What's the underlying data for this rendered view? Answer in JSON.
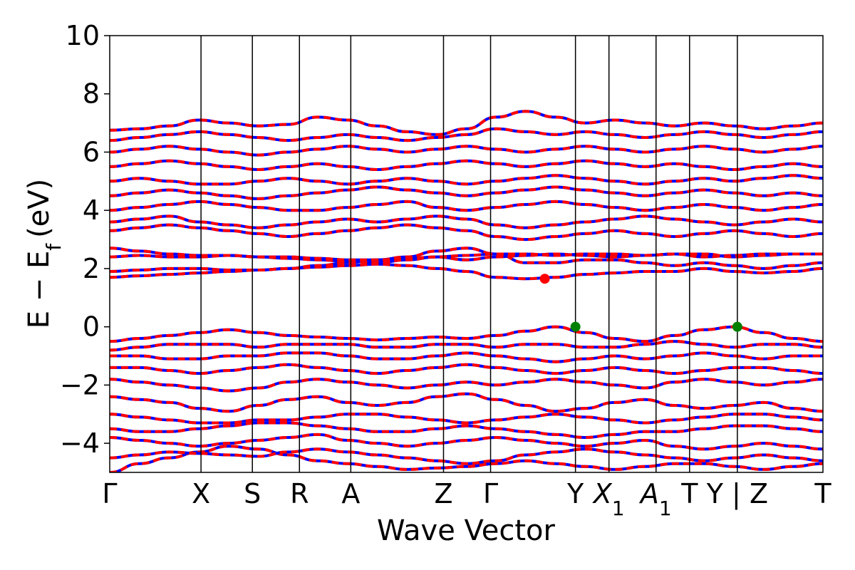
{
  "chart_data": {
    "type": "line",
    "xlabel": "Wave Vector",
    "ylabel": "E − E",
    "ylabel_sub": "f",
    "ylabel_unit": "(eV)",
    "ylim": [
      -5,
      10
    ],
    "xlim": [
      0,
      1
    ],
    "yticks": [
      {
        "value": -4,
        "label": "−4"
      },
      {
        "value": -2,
        "label": "−2"
      },
      {
        "value": 0,
        "label": "0"
      },
      {
        "value": 2,
        "label": "2"
      },
      {
        "value": 4,
        "label": "4"
      },
      {
        "value": 6,
        "label": "6"
      },
      {
        "value": 8,
        "label": "8"
      },
      {
        "value": 10,
        "label": "10"
      }
    ],
    "kpoints": [
      {
        "label": "Γ",
        "sub": "",
        "x": 0.0
      },
      {
        "label": "X",
        "sub": "",
        "x": 0.128
      },
      {
        "label": "S",
        "sub": "",
        "x": 0.2
      },
      {
        "label": "R",
        "sub": "",
        "x": 0.266
      },
      {
        "label": "A",
        "sub": "",
        "x": 0.338
      },
      {
        "label": "Z",
        "sub": "",
        "x": 0.468
      },
      {
        "label": "Γ",
        "sub": "",
        "x": 0.534
      },
      {
        "label": "Y",
        "sub": "",
        "x": 0.653
      },
      {
        "label": "X",
        "sub": "1",
        "x": 0.7
      },
      {
        "label": "A",
        "sub": "1",
        "x": 0.766
      },
      {
        "label": "T",
        "sub": "",
        "x": 0.813
      },
      {
        "label": "Y | Z",
        "sub": "",
        "x": 0.88
      },
      {
        "label": "T",
        "sub": "",
        "x": 1.0
      }
    ],
    "band_colors": {
      "up": "#ff0000",
      "down": "#0000ff"
    },
    "series": [
      {
        "values": [
          -5.0,
          -4.7,
          -4.5,
          -4.3,
          -4.1,
          -4.2,
          -4.4,
          -4.6,
          -4.7,
          -4.8,
          -4.9,
          -4.85,
          -4.8,
          -4.7,
          -4.6,
          -4.7,
          -4.8,
          -4.9,
          -4.8,
          -4.7,
          -4.7,
          -4.8,
          -4.9,
          -4.8,
          -4.7
        ]
      },
      {
        "values": [
          -4.5,
          -4.4,
          -4.3,
          -4.35,
          -4.4,
          -4.45,
          -4.3,
          -4.2,
          -4.3,
          -4.4,
          -4.5,
          -4.6,
          -4.7,
          -4.6,
          -4.4,
          -4.3,
          -4.2,
          -4.3,
          -4.4,
          -4.5,
          -4.6,
          -4.5,
          -4.4,
          -4.5,
          -4.6
        ]
      },
      {
        "values": [
          -3.8,
          -3.9,
          -4.0,
          -4.1,
          -4.0,
          -3.9,
          -3.8,
          -3.7,
          -3.9,
          -4.0,
          -4.1,
          -4.0,
          -3.9,
          -3.8,
          -3.9,
          -4.0,
          -4.1,
          -4.0,
          -3.9,
          -4.1,
          -4.2,
          -4.1,
          -4.0,
          -4.1,
          -4.2
        ]
      },
      {
        "values": [
          -3.5,
          -3.6,
          -3.6,
          -3.5,
          -3.4,
          -3.3,
          -3.3,
          -3.4,
          -3.5,
          -3.6,
          -3.6,
          -3.5,
          -3.4,
          -3.5,
          -3.6,
          -3.7,
          -3.8,
          -3.7,
          -3.6,
          -3.6,
          -3.5,
          -3.4,
          -3.4,
          -3.5,
          -3.6
        ]
      },
      {
        "values": [
          -3.0,
          -3.1,
          -3.2,
          -3.3,
          -3.3,
          -3.2,
          -3.2,
          -3.1,
          -3.0,
          -3.0,
          -3.1,
          -3.2,
          -3.3,
          -3.2,
          -3.1,
          -3.0,
          -3.1,
          -3.2,
          -3.3,
          -3.2,
          -3.1,
          -3.0,
          -3.0,
          -3.1,
          -3.2
        ]
      },
      {
        "values": [
          -2.4,
          -2.5,
          -2.6,
          -2.8,
          -2.9,
          -2.7,
          -2.5,
          -2.4,
          -2.6,
          -2.7,
          -2.6,
          -2.4,
          -2.3,
          -2.5,
          -2.7,
          -2.9,
          -2.8,
          -2.6,
          -2.5,
          -2.7,
          -2.8,
          -2.7,
          -2.6,
          -2.8,
          -2.9
        ]
      },
      {
        "values": [
          -1.8,
          -1.9,
          -2.0,
          -2.1,
          -2.2,
          -2.1,
          -1.9,
          -1.8,
          -1.9,
          -2.0,
          -2.1,
          -2.0,
          -1.9,
          -2.0,
          -1.9,
          -1.8,
          -1.9,
          -2.0,
          -2.1,
          -1.9,
          -1.8,
          -1.9,
          -2.0,
          -1.9,
          -1.8
        ]
      },
      {
        "values": [
          -1.4,
          -1.4,
          -1.5,
          -1.6,
          -1.5,
          -1.4,
          -1.3,
          -1.4,
          -1.5,
          -1.6,
          -1.5,
          -1.4,
          -1.3,
          -1.4,
          -1.5,
          -1.6,
          -1.5,
          -1.4,
          -1.5,
          -1.6,
          -1.5,
          -1.4,
          -1.4,
          -1.5,
          -1.6
        ]
      },
      {
        "values": [
          -1.0,
          -1.0,
          -1.1,
          -1.1,
          -1.0,
          -1.0,
          -0.9,
          -0.9,
          -1.0,
          -1.1,
          -1.1,
          -1.0,
          -0.9,
          -1.0,
          -1.1,
          -1.2,
          -1.1,
          -1.0,
          -1.1,
          -1.0,
          -0.9,
          -1.0,
          -1.1,
          -1.0,
          -1.0
        ]
      },
      {
        "values": [
          -0.8,
          -0.7,
          -0.6,
          -0.6,
          -0.6,
          -0.7,
          -0.6,
          -0.6,
          -0.6,
          -0.7,
          -0.7,
          -0.6,
          -0.6,
          -0.7,
          -0.6,
          -0.6,
          -0.7,
          -0.7,
          -0.6,
          -0.5,
          -0.6,
          -0.7,
          -0.6,
          -0.6,
          -0.7
        ]
      },
      {
        "values": [
          -0.5,
          -0.4,
          -0.3,
          -0.2,
          -0.1,
          -0.2,
          -0.3,
          -0.35,
          -0.4,
          -0.45,
          -0.4,
          -0.35,
          -0.4,
          -0.3,
          -0.15,
          0.0,
          -0.2,
          -0.4,
          -0.5,
          -0.3,
          -0.1,
          0.0,
          -0.2,
          -0.4,
          -0.5
        ]
      },
      {
        "values": [
          1.7,
          1.75,
          1.8,
          1.85,
          1.9,
          1.95,
          2.0,
          2.05,
          2.1,
          2.15,
          2.1,
          2.0,
          1.9,
          1.7,
          1.65,
          1.7,
          1.8,
          1.85,
          1.9,
          1.9,
          2.0,
          1.9,
          1.85,
          1.9,
          2.0
        ]
      },
      {
        "values": [
          1.9,
          1.95,
          2.0,
          2.0,
          1.95,
          1.95,
          2.0,
          2.1,
          2.2,
          2.3,
          2.4,
          2.6,
          2.7,
          2.5,
          2.2,
          2.2,
          2.3,
          2.3,
          2.2,
          2.1,
          2.2,
          2.1,
          2.0,
          2.1,
          2.2
        ]
      },
      {
        "values": [
          2.4,
          2.45,
          2.4,
          2.4,
          2.45,
          2.4,
          2.35,
          2.3,
          2.25,
          2.2,
          2.3,
          2.4,
          2.3,
          2.4,
          2.45,
          2.5,
          2.45,
          2.4,
          2.45,
          2.5,
          2.4,
          2.45,
          2.5,
          2.5,
          2.5
        ]
      },
      {
        "values": [
          2.7,
          2.6,
          2.5,
          2.45,
          2.45,
          2.4,
          2.4,
          2.35,
          2.3,
          2.3,
          2.35,
          2.4,
          2.45,
          2.5,
          2.5,
          2.45,
          2.5,
          2.5,
          2.45,
          2.5,
          2.5,
          2.4,
          2.45,
          2.5,
          2.5
        ]
      },
      {
        "values": [
          3.3,
          3.4,
          3.5,
          3.4,
          3.3,
          3.2,
          3.1,
          3.2,
          3.3,
          3.4,
          3.5,
          3.4,
          3.3,
          3.1,
          3.0,
          3.1,
          3.2,
          3.3,
          3.2,
          3.1,
          3.2,
          3.3,
          3.2,
          3.1,
          3.2
        ]
      },
      {
        "values": [
          3.6,
          3.7,
          3.8,
          3.6,
          3.5,
          3.4,
          3.5,
          3.6,
          3.7,
          3.6,
          3.7,
          3.8,
          3.7,
          3.5,
          3.4,
          3.5,
          3.6,
          3.7,
          3.8,
          3.7,
          3.6,
          3.5,
          3.6,
          3.7,
          3.6
        ]
      },
      {
        "values": [
          4.0,
          4.1,
          4.2,
          4.3,
          4.2,
          4.1,
          4.0,
          4.0,
          4.1,
          4.2,
          4.3,
          4.1,
          4.0,
          4.1,
          4.2,
          4.3,
          4.2,
          4.1,
          4.0,
          4.1,
          4.2,
          4.1,
          4.0,
          4.1,
          4.2
        ]
      },
      {
        "values": [
          4.5,
          4.6,
          4.7,
          4.6,
          4.5,
          4.4,
          4.5,
          4.6,
          4.7,
          4.8,
          4.7,
          4.6,
          4.5,
          4.6,
          4.7,
          4.8,
          4.7,
          4.6,
          4.5,
          4.6,
          4.7,
          4.6,
          4.5,
          4.6,
          4.5
        ]
      },
      {
        "values": [
          5.0,
          5.1,
          5.0,
          4.9,
          4.9,
          5.0,
          5.1,
          5.0,
          4.9,
          5.0,
          5.1,
          5.0,
          4.9,
          5.0,
          5.1,
          5.2,
          5.1,
          5.0,
          4.9,
          5.0,
          5.1,
          5.0,
          5.1,
          5.2,
          5.1
        ]
      },
      {
        "values": [
          5.5,
          5.6,
          5.7,
          5.6,
          5.5,
          5.4,
          5.5,
          5.6,
          5.5,
          5.4,
          5.5,
          5.6,
          5.7,
          5.6,
          5.5,
          5.6,
          5.7,
          5.6,
          5.5,
          5.6,
          5.5,
          5.4,
          5.5,
          5.6,
          5.5
        ]
      },
      {
        "values": [
          6.0,
          6.1,
          6.2,
          6.1,
          6.0,
          5.9,
          6.0,
          6.1,
          6.2,
          6.1,
          6.0,
          6.1,
          6.2,
          6.1,
          6.0,
          6.1,
          6.2,
          6.1,
          6.0,
          6.1,
          6.2,
          6.1,
          6.0,
          6.1,
          6.2
        ]
      },
      {
        "values": [
          6.4,
          6.5,
          6.6,
          6.7,
          6.6,
          6.5,
          6.4,
          6.5,
          6.6,
          6.5,
          6.4,
          6.5,
          6.6,
          6.8,
          6.7,
          6.6,
          6.7,
          6.6,
          6.5,
          6.6,
          6.7,
          6.6,
          6.5,
          6.6,
          6.7
        ]
      },
      {
        "values": [
          6.75,
          6.8,
          6.9,
          7.1,
          7.0,
          6.9,
          6.95,
          7.2,
          7.1,
          6.9,
          6.7,
          6.6,
          6.8,
          7.2,
          7.4,
          7.2,
          7.0,
          7.1,
          7.0,
          6.9,
          7.0,
          6.9,
          6.8,
          6.9,
          7.0
        ]
      }
    ],
    "markers": [
      {
        "x": 0.61,
        "y": 1.65,
        "color": "#ff0000"
      },
      {
        "x": 0.653,
        "y": 0.0,
        "color": "#008000"
      },
      {
        "x": 0.88,
        "y": 0.0,
        "color": "#008000"
      }
    ]
  }
}
